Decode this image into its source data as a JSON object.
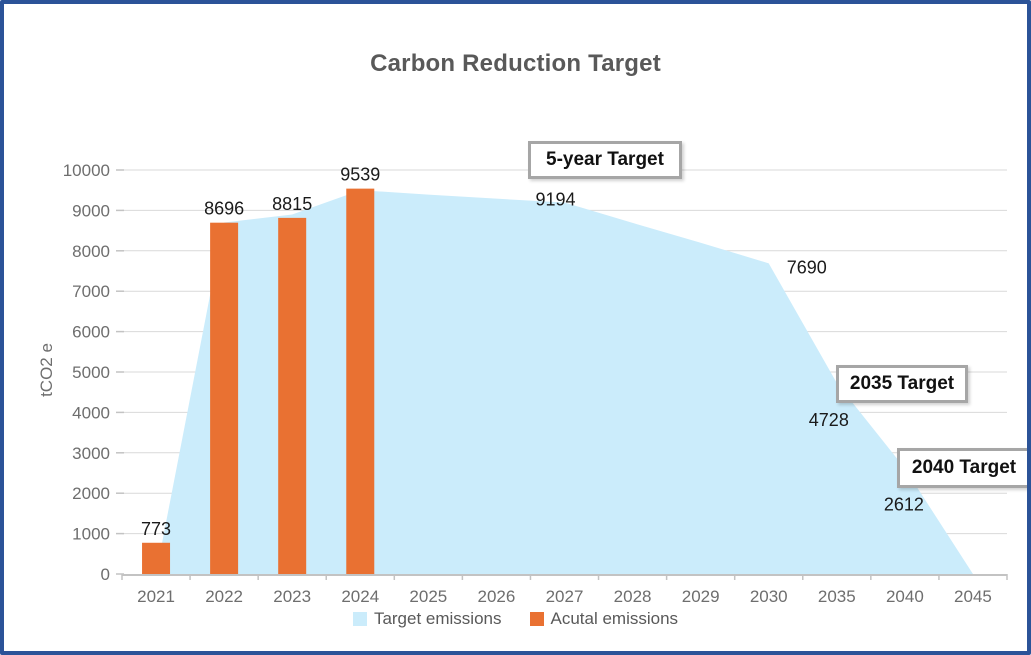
{
  "colors": {
    "frame_border": "#2b5398",
    "area_fill": "#cbecfb",
    "bar_fill": "#e97132",
    "gridline": "#d9d9d9",
    "axis_line": "#c3c3c3",
    "axis_text": "#6e6e6e",
    "title_text": "#595959",
    "label_text": "#1a1a1a",
    "annotation_border": "#a6a6a6"
  },
  "chart_data": {
    "type": "area+bar combo",
    "title": "Carbon Reduction Target",
    "ylabel": "tCO2 e",
    "xlabel": "",
    "ylim": [
      0,
      10000
    ],
    "ytick_step": 1000,
    "grid": true,
    "legend_position": "bottom",
    "categories": [
      "2021",
      "2022",
      "2023",
      "2024",
      "2025",
      "2026",
      "2027",
      "2028",
      "2029",
      "2030",
      "2035",
      "2040",
      "2045"
    ],
    "series": [
      {
        "name": "Target emissions",
        "type": "area",
        "color": "#cbecfb",
        "values": [
          0,
          8700,
          8900,
          9500,
          9390,
          9290,
          9194,
          8690,
          8200,
          7690,
          4728,
          2612,
          0
        ],
        "label_indices": [
          6,
          9,
          10,
          11
        ],
        "labeled_points": [
          {
            "category": "2027",
            "value": 9194
          },
          {
            "category": "2030",
            "value": 7690
          },
          {
            "category": "2035",
            "value": 4728
          },
          {
            "category": "2040",
            "value": 2612
          }
        ]
      },
      {
        "name": "Acutal emissions",
        "type": "bar",
        "color": "#e97132",
        "values": [
          773,
          8696,
          8815,
          9539,
          null,
          null,
          null,
          null,
          null,
          null,
          null,
          null,
          null
        ],
        "label_indices": [
          0,
          1,
          2,
          3
        ],
        "labeled_points": [
          {
            "category": "2021",
            "value": 773
          },
          {
            "category": "2022",
            "value": 8696
          },
          {
            "category": "2023",
            "value": 8815
          },
          {
            "category": "2024",
            "value": 9539
          }
        ]
      }
    ],
    "annotations": [
      {
        "label": "5-year Target"
      },
      {
        "label": "2035 Target"
      },
      {
        "label": "2040 Target"
      }
    ]
  }
}
